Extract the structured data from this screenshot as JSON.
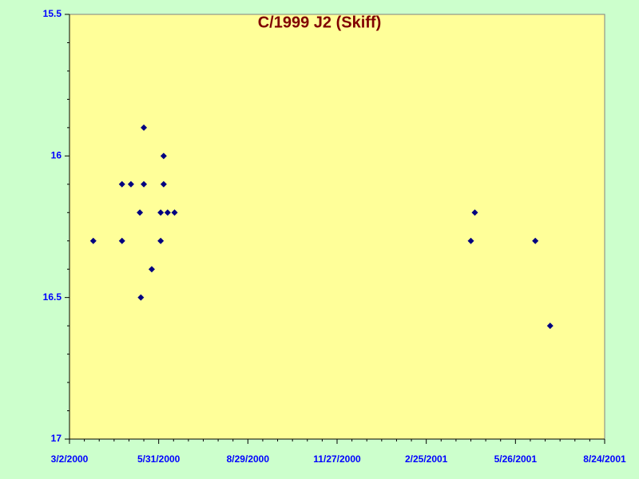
{
  "chart_data": {
    "type": "scatter",
    "title": "C/1999 J2 (Skiff)",
    "x": [
      "3/26/2000",
      "4/24/2000",
      "4/24/2000",
      "5/3/2000",
      "5/12/2000",
      "5/13/2000",
      "5/16/2000",
      "5/16/2000",
      "5/24/2000",
      "6/2/2000",
      "6/2/2000",
      "6/5/2000",
      "6/5/2000",
      "6/9/2000",
      "6/16/2000",
      "4/11/2001",
      "4/15/2001",
      "6/15/2001",
      "6/30/2001"
    ],
    "series": [
      {
        "color": "#000080",
        "values": [
          16.3,
          16.3,
          16.1,
          16.1,
          16.2,
          16.5,
          15.9,
          16.1,
          16.4,
          16.2,
          16.3,
          16.0,
          16.1,
          16.2,
          16.2,
          16.3,
          16.2,
          16.3,
          16.6
        ]
      }
    ],
    "xlim": [
      "3/2/2000",
      "8/24/2001"
    ],
    "xticks": [
      "3/2/2000",
      "5/31/2000",
      "8/29/2000",
      "11/27/2000",
      "2/25/2001",
      "5/26/2001",
      "8/24/2001"
    ],
    "ylim": [
      15.5,
      17
    ],
    "yticks": [
      15.5,
      16,
      16.5,
      17
    ],
    "y_inverted": true
  }
}
